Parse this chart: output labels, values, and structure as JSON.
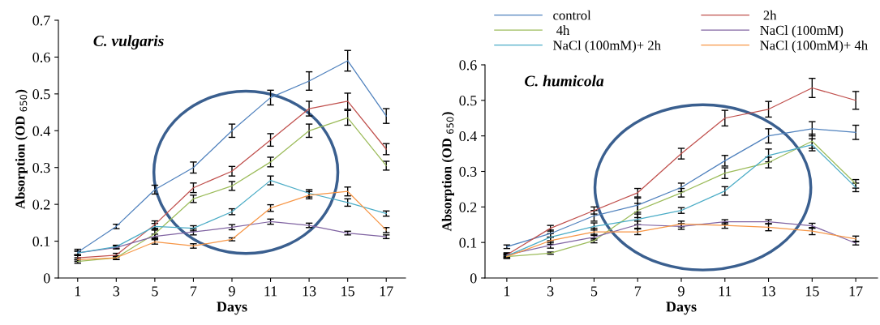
{
  "chart_data": [
    {
      "type": "line",
      "title": "C. vulgaris",
      "xlabel": "Days",
      "ylabel": "Absorption (OD $_{650}$)",
      "categories": [
        "1",
        "3",
        "5",
        "7",
        "9",
        "11",
        "13",
        "15",
        "17"
      ],
      "ylim": [
        0,
        0.7
      ],
      "yticks": [
        0,
        0.1,
        0.2,
        0.3,
        0.4,
        0.5,
        0.6,
        0.7
      ],
      "grid": false,
      "legend": false,
      "marker": "none",
      "line_style": "solid",
      "series": [
        {
          "color": "#4f81bd",
          "values": [
            0.07,
            0.14,
            0.24,
            0.3,
            0.4,
            0.49,
            0.535,
            0.59,
            0.44
          ],
          "errors": [
            0.008,
            0.006,
            0.012,
            0.015,
            0.018,
            0.02,
            0.025,
            0.028,
            0.02
          ]
        },
        {
          "color": "#c0504d",
          "values": [
            0.055,
            0.062,
            0.145,
            0.245,
            0.29,
            0.375,
            0.46,
            0.48,
            0.35
          ],
          "errors": [
            0.006,
            0.005,
            0.01,
            0.013,
            0.013,
            0.017,
            0.02,
            0.022,
            0.015
          ]
        },
        {
          "color": "#9bbb59",
          "values": [
            0.045,
            0.055,
            0.12,
            0.215,
            0.25,
            0.315,
            0.4,
            0.435,
            0.305
          ],
          "errors": [
            0.005,
            0.005,
            0.01,
            0.01,
            0.012,
            0.013,
            0.018,
            0.02,
            0.012
          ]
        },
        {
          "color": "#8064a2",
          "values": [
            0.068,
            0.083,
            0.113,
            0.125,
            0.138,
            0.153,
            0.143,
            0.122,
            0.112
          ],
          "errors": [
            0.005,
            0.004,
            0.006,
            0.008,
            0.007,
            0.007,
            0.006,
            0.005,
            0.005
          ]
        },
        {
          "color": "#4bacc6",
          "values": [
            0.068,
            0.085,
            0.14,
            0.135,
            0.18,
            0.265,
            0.23,
            0.205,
            0.175
          ],
          "errors": [
            0.005,
            0.004,
            0.008,
            0.007,
            0.008,
            0.012,
            0.01,
            0.01,
            0.007
          ]
        },
        {
          "color": "#f79646",
          "values": [
            0.05,
            0.055,
            0.098,
            0.087,
            0.105,
            0.19,
            0.225,
            0.235,
            0.13
          ],
          "errors": [
            0.005,
            0.004,
            0.006,
            0.006,
            0.004,
            0.009,
            0.01,
            0.012,
            0.007
          ]
        }
      ]
    },
    {
      "type": "line",
      "title": "C. humicola",
      "xlabel": "Days",
      "ylabel": "Absorption (OD $_{650}$)",
      "categories": [
        "1",
        "3",
        "5",
        "7",
        "9",
        "11",
        "13",
        "15",
        "17"
      ],
      "ylim": [
        0,
        0.6
      ],
      "yticks": [
        0,
        0.1,
        0.2,
        0.3,
        0.4,
        0.5,
        0.6
      ],
      "grid": false,
      "legend": "top",
      "marker": "none",
      "line_style": "solid",
      "series": [
        {
          "name": "control",
          "color": "#4f81bd",
          "values": [
            0.088,
            0.125,
            0.175,
            0.205,
            0.255,
            0.33,
            0.4,
            0.42,
            0.41
          ],
          "errors": [
            0.005,
            0.01,
            0.015,
            0.02,
            0.012,
            0.015,
            0.02,
            0.02,
            0.02
          ]
        },
        {
          "name": " 2h",
          "color": "#c0504d",
          "values": [
            0.065,
            0.14,
            0.19,
            0.24,
            0.35,
            0.45,
            0.475,
            0.535,
            0.5
          ],
          "errors": [
            0.006,
            0.008,
            0.01,
            0.012,
            0.015,
            0.022,
            0.022,
            0.027,
            0.025
          ]
        },
        {
          "name": " 4h",
          "color": "#9bbb59",
          "values": [
            0.06,
            0.07,
            0.105,
            0.19,
            0.24,
            0.295,
            0.325,
            0.385,
            0.265
          ],
          "errors": [
            0.005,
            0.003,
            0.006,
            0.02,
            0.012,
            0.015,
            0.015,
            0.02,
            0.012
          ]
        },
        {
          "name": "NaCl (100mM)",
          "color": "#8064a2",
          "values": [
            0.065,
            0.092,
            0.115,
            0.15,
            0.145,
            0.158,
            0.158,
            0.147,
            0.098
          ],
          "errors": [
            0.004,
            0.008,
            0.008,
            0.01,
            0.008,
            0.006,
            0.006,
            0.007,
            0.005
          ]
        },
        {
          "name": "NaCl (100mM)+ 2h",
          "color": "#4bacc6",
          "values": [
            0.062,
            0.115,
            0.145,
            0.165,
            0.19,
            0.245,
            0.345,
            0.375,
            0.255
          ],
          "errors": [
            0.005,
            0.01,
            0.01,
            0.015,
            0.008,
            0.012,
            0.018,
            0.017,
            0.012
          ]
        },
        {
          "name": "NaCl (100mM)+ 4h",
          "color": "#f79646",
          "values": [
            0.06,
            0.105,
            0.13,
            0.13,
            0.152,
            0.148,
            0.143,
            0.132,
            0.11
          ],
          "errors": [
            0.004,
            0.01,
            0.01,
            0.008,
            0.008,
            0.008,
            0.01,
            0.01,
            0.008
          ]
        }
      ]
    }
  ]
}
